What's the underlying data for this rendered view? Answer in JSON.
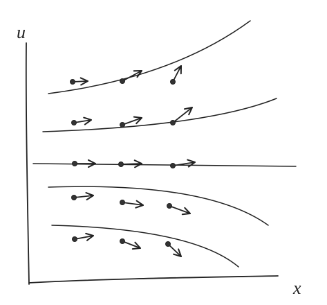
{
  "axes": {
    "y_label": "u",
    "x_label": "x"
  }
}
